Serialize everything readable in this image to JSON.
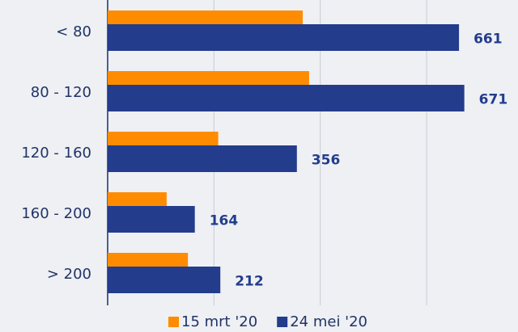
{
  "chart_data": {
    "type": "barh",
    "categories": [
      "< 80",
      "80 - 120",
      "120 - 160",
      "160 - 200",
      "> 200"
    ],
    "series": [
      {
        "name": "15 mrt '20",
        "color": "#ff8c00",
        "values": [
          367,
          379,
          208,
          111,
          151
        ]
      },
      {
        "name": "24 mei '20",
        "color": "#233d8c",
        "values": [
          661,
          671,
          356,
          164,
          212
        ]
      }
    ],
    "xlim": [
      0,
      772
    ],
    "xticks": [
      0,
      200,
      400,
      600
    ],
    "grid": true,
    "legend": "bottom",
    "value_labels_series": 1
  }
}
